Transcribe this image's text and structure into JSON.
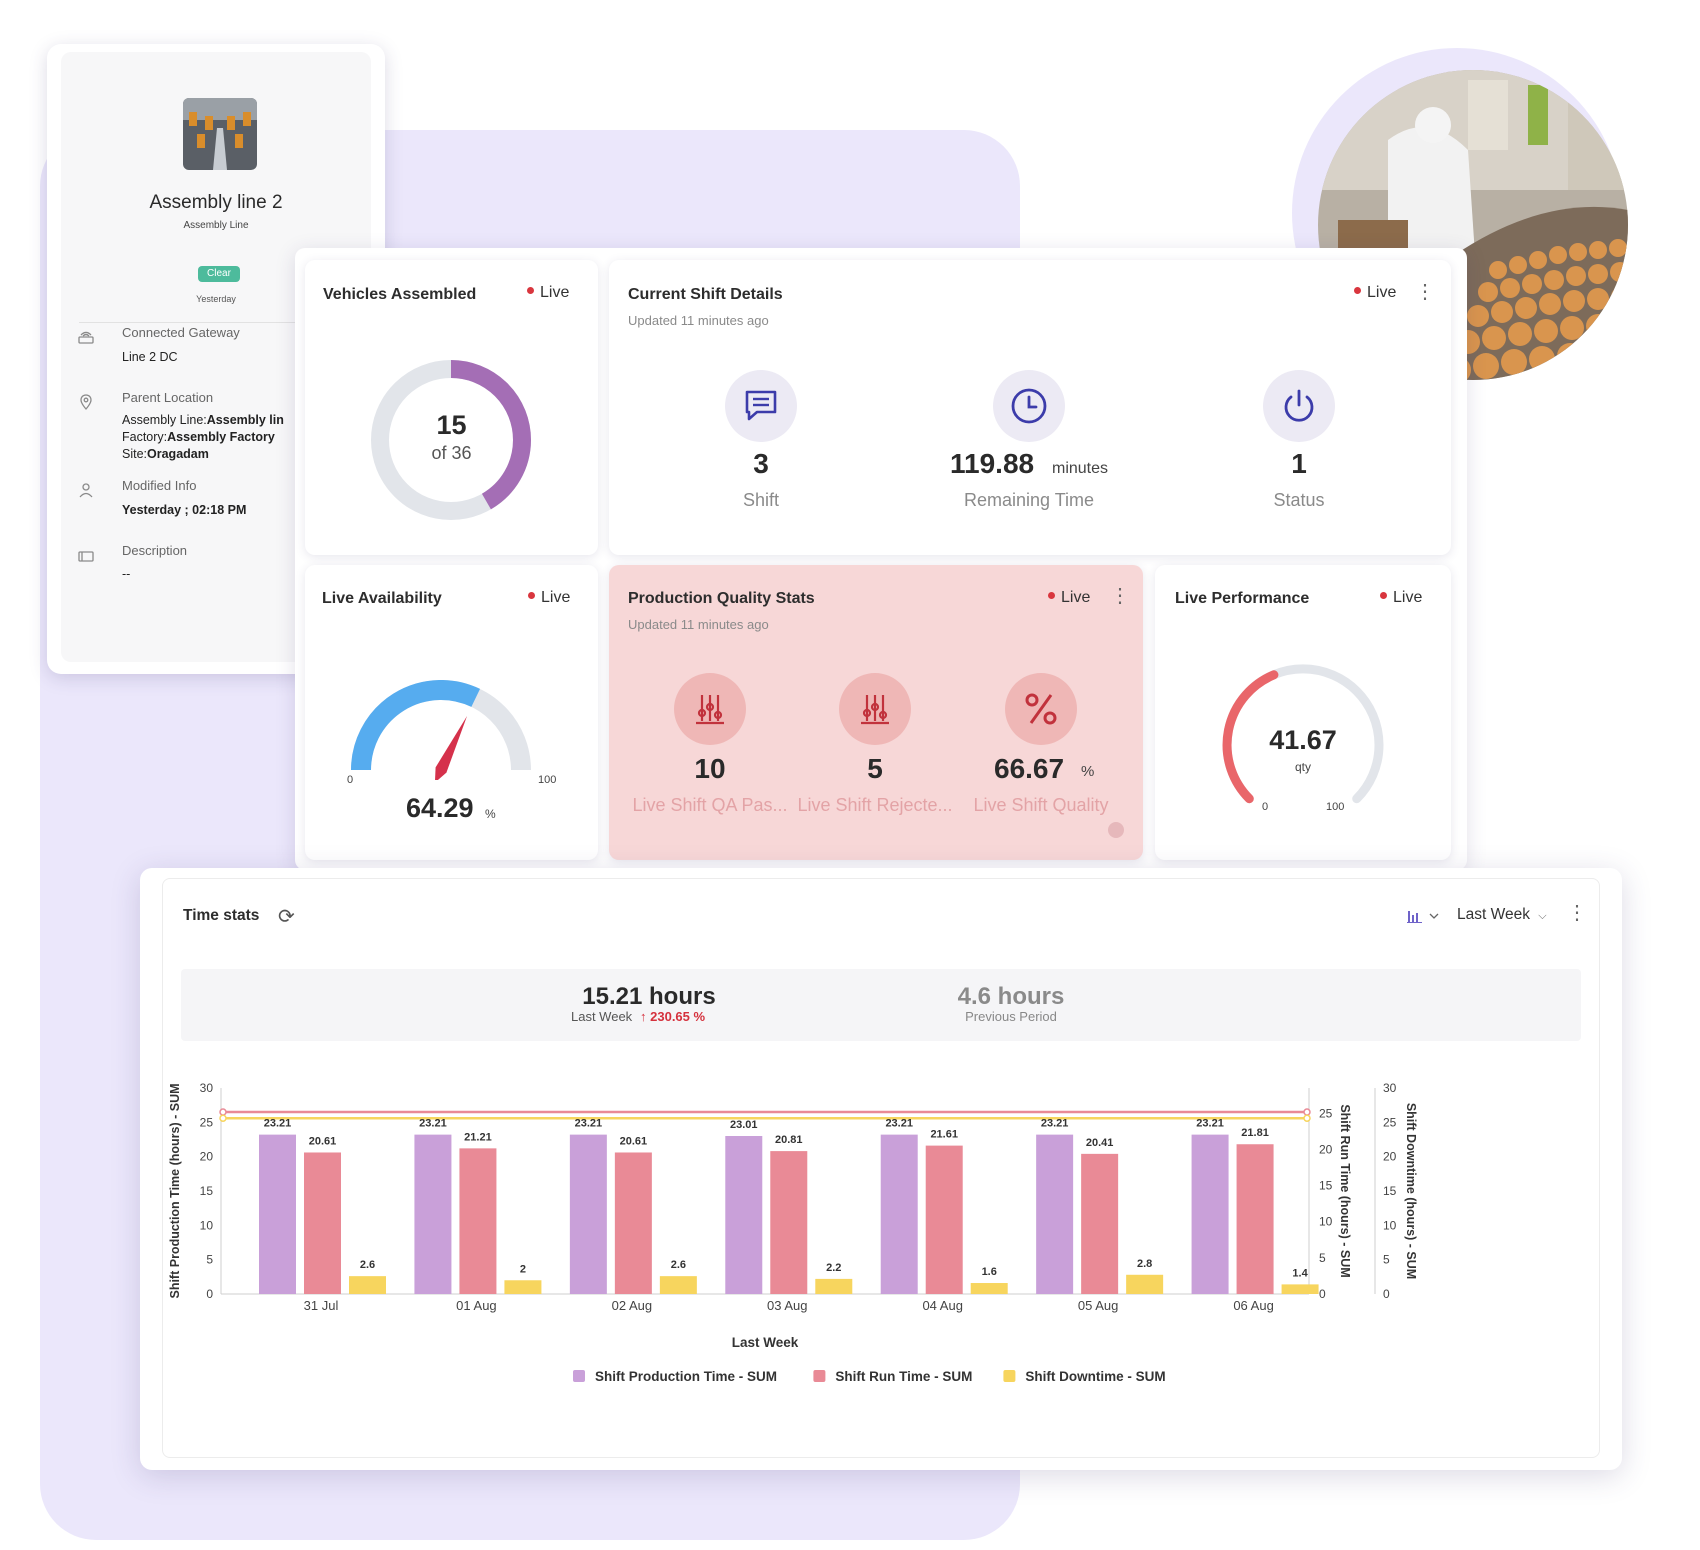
{
  "device": {
    "name": "Assembly line 2",
    "type": "Assembly Line",
    "status_badge": "Clear",
    "status_time": "Yesterday",
    "info": [
      {
        "label": "Connected Gateway",
        "value": "Line 2 DC"
      },
      {
        "label": "Parent Location",
        "lines": [
          {
            "key": "Assembly Line:",
            "val": "Assembly lin"
          },
          {
            "key": "Factory:",
            "val": "Assembly Factory"
          },
          {
            "key": "Site:",
            "val": "Oragadam"
          }
        ]
      },
      {
        "label": "Modified Info",
        "value": "Yesterday ; 02:18 PM"
      },
      {
        "label": "Description",
        "value": "--"
      }
    ]
  },
  "live_label": "Live",
  "vehicles": {
    "title": "Vehicles Assembled",
    "value": "15",
    "total_text": "of 36",
    "value_num": 15,
    "total_num": 36,
    "colors": {
      "fill": "#a46eb5",
      "track": "#e2e5ea"
    }
  },
  "shift": {
    "title": "Current Shift Details",
    "updated": "Updated 11 minutes ago",
    "stats": [
      {
        "value": "3",
        "unit": "",
        "label": "Shift",
        "icon": "chat-icon"
      },
      {
        "value": "119.88",
        "unit": "minutes",
        "label": "Remaining Time",
        "icon": "clock-icon"
      },
      {
        "value": "1",
        "unit": "",
        "label": "Status",
        "icon": "power-icon"
      }
    ]
  },
  "availability": {
    "title": "Live Availability",
    "value": "64.29",
    "unit": "%",
    "min": "0",
    "max": "100",
    "value_num": 64.29,
    "colors": {
      "fill": "#56acef",
      "needle": "#d5314b"
    }
  },
  "quality": {
    "title": "Production Quality Stats",
    "updated": "Updated 11 minutes ago",
    "stats": [
      {
        "value": "10",
        "unit": "",
        "label": "Live Shift QA Pas...",
        "icon": "abacus-icon"
      },
      {
        "value": "5",
        "unit": "",
        "label": "Live Shift Rejecte...",
        "icon": "abacus-icon"
      },
      {
        "value": "66.67",
        "unit": "%",
        "label": "Live Shift Quality",
        "icon": "percent-icon"
      }
    ]
  },
  "performance": {
    "title": "Live Performance",
    "value": "41.67",
    "unit": "qty",
    "min": "0",
    "max": "100",
    "value_num": 41.67,
    "colors": {
      "fill": "#e9666a",
      "track": "#e2e5ea"
    }
  },
  "time_stats": {
    "title": "Time stats",
    "period_select": "Last Week",
    "current_value": "15.21 hours",
    "current_label": "Last Week",
    "change": "230.65 %",
    "previous_value": "4.6 hours",
    "previous_label": "Previous Period"
  },
  "chart_data": {
    "type": "bar",
    "xlabel": "Last Week",
    "categories": [
      "31 Jul",
      "01 Aug",
      "02 Aug",
      "03 Aug",
      "04 Aug",
      "05 Aug",
      "06 Aug"
    ],
    "series": [
      {
        "name": "Shift Production Time - SUM",
        "values": [
          23.21,
          23.21,
          23.21,
          23.01,
          23.21,
          23.21,
          23.21
        ],
        "color": "#c9a0d9",
        "axis": "Shift Production Time (hours) - SUM"
      },
      {
        "name": "Shift Run Time - SUM",
        "values": [
          20.61,
          21.21,
          20.61,
          20.81,
          21.61,
          20.41,
          21.81
        ],
        "color": "#e98a96",
        "axis": "Shift Run Time (hours) - SUM"
      },
      {
        "name": "Shift Downtime - SUM",
        "values": [
          2.6,
          2,
          2.6,
          2.2,
          1.6,
          2.8,
          1.4
        ],
        "color": "#f7d55e",
        "axis": "Shift Downtime (hours) - SUM"
      }
    ],
    "ylim": [
      0,
      30
    ],
    "yticks": [
      0,
      5,
      10,
      15,
      20,
      25,
      30
    ],
    "y_right1_ticks": [
      0,
      5,
      10,
      15,
      20,
      25
    ],
    "y_right2_ticks": [
      0,
      5,
      10,
      15,
      20,
      25,
      30
    ],
    "reference_lines": [
      {
        "value": 26.5,
        "color": "#e98a96"
      },
      {
        "value": 25.6,
        "color": "#f7d55e"
      }
    ],
    "legend": "bottom"
  }
}
